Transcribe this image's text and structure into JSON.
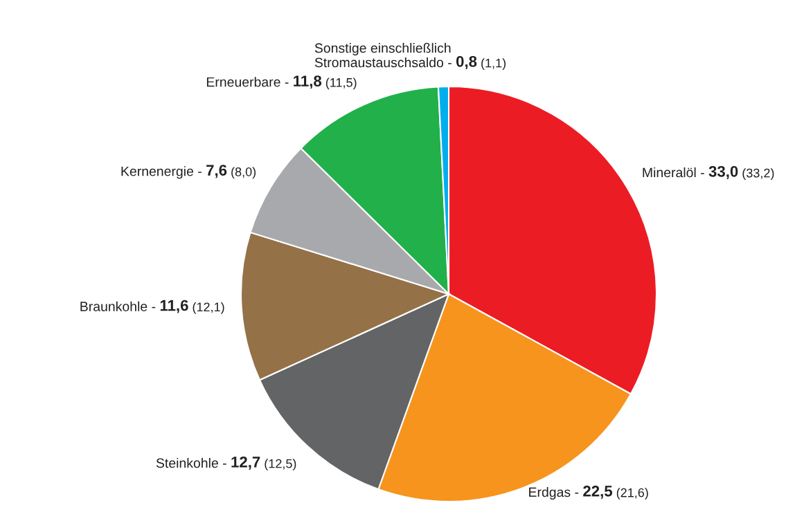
{
  "chart_data": {
    "type": "pie",
    "categories": [
      "Mineralöl -",
      "Erdgas -",
      "Steinkohle -",
      "Braunkohle -",
      "Kernenergie -",
      "Erneuerbare -",
      "Sonstige einschließlich\nStromaustauschsaldo -"
    ],
    "values": [
      33.0,
      22.5,
      12.7,
      11.6,
      7.6,
      11.8,
      0.8
    ],
    "colors": [
      "#ec1c24",
      "#f7941d",
      "#636466",
      "#957147",
      "#a7a9ac",
      "#22b04b",
      "#00aeef"
    ],
    "value_labels": [
      "33,0",
      "22,5",
      "12,7",
      "11,6",
      "7,6",
      "11,8",
      "0,8"
    ],
    "annotations": [
      "(33,2)",
      "(21,6)",
      "(12,5)",
      "(12,1)",
      "(8,0)",
      "(11,5)",
      "(1,1)"
    ]
  }
}
